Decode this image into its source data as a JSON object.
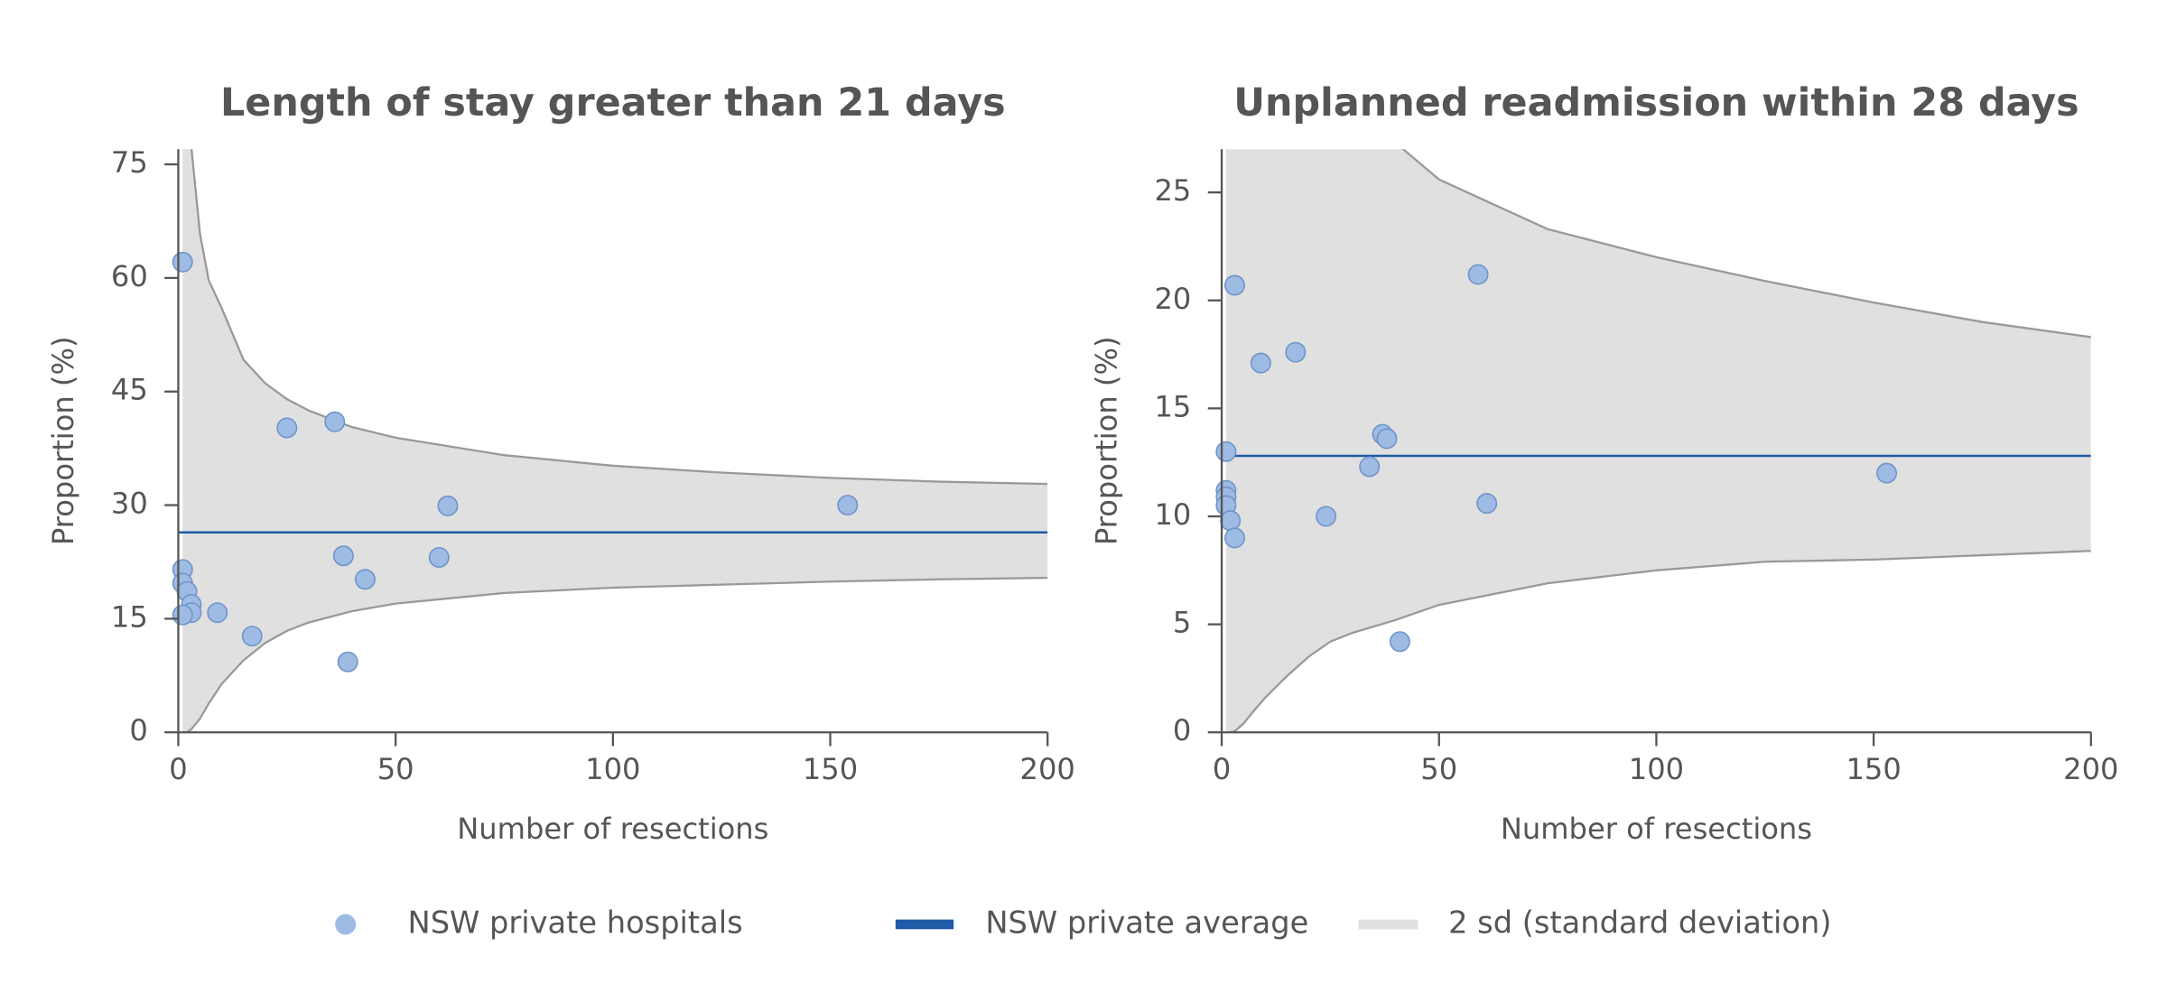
{
  "chart_data": [
    {
      "type": "scatter",
      "title": "Length of stay greater than 21 days",
      "x_label": "Number of resections",
      "y_label": "Proportion (%)",
      "xlim": [
        0,
        200
      ],
      "ylim": [
        0,
        77
      ],
      "xticks": [
        0,
        50,
        100,
        150,
        200
      ],
      "yticks": [
        0,
        15,
        30,
        45,
        60,
        75
      ],
      "series": [
        {
          "name": "NSW private hospitals",
          "color": "#9dbbe3",
          "x": [
            1,
            1,
            1,
            2,
            3,
            3,
            1,
            9,
            17,
            25,
            36,
            38,
            39,
            43,
            60,
            62,
            154
          ],
          "values": [
            62.1,
            21.5,
            19.7,
            18.6,
            16.9,
            15.8,
            15.5,
            15.8,
            12.7,
            40.2,
            41,
            23.3,
            9.3,
            20.2,
            23.1,
            29.9,
            30
          ]
        }
      ],
      "average": {
        "name": "NSW private average",
        "color": "#1f5aa6",
        "value": 26.4
      },
      "band": {
        "name": "2 sd (standard deviation)",
        "color": "#e0e0e0",
        "x": [
          1,
          2,
          3,
          5,
          7,
          10,
          15,
          20,
          25,
          30,
          40,
          50,
          75,
          100,
          125,
          150,
          175,
          200
        ],
        "upper": [
          114,
          88.8,
          77.3,
          65.8,
          59.7,
          56,
          49.2,
          46.1,
          44,
          42.5,
          40.3,
          38.9,
          36.6,
          35.2,
          34.3,
          33.6,
          33.1,
          32.8
        ],
        "lower": [
          0,
          0,
          0.4,
          1.8,
          3.8,
          6.4,
          9.5,
          11.8,
          13.4,
          14.5,
          16,
          17,
          18.4,
          19.1,
          19.5,
          19.9,
          20.2,
          20.4
        ]
      }
    },
    {
      "type": "scatter",
      "title": "Unplanned readmission within 28 days",
      "x_label": "Number of resections",
      "y_label": "Proportion (%)",
      "xlim": [
        0,
        200
      ],
      "ylim": [
        0,
        27
      ],
      "xticks": [
        0,
        50,
        100,
        150,
        200
      ],
      "yticks": [
        0,
        5,
        10,
        15,
        20,
        25
      ],
      "series": [
        {
          "color": "#9dbbe3",
          "x": [
            1,
            1,
            1,
            1,
            2,
            3,
            3,
            9,
            17,
            24,
            34,
            37,
            38,
            41,
            59,
            61,
            153
          ],
          "values": [
            13,
            11.2,
            10.9,
            10.5,
            9.8,
            20.7,
            9,
            17.1,
            17.6,
            10,
            12.3,
            13.8,
            13.6,
            4.2,
            21.2,
            10.6,
            12
          ]
        }
      ],
      "average": {
        "color": "#1f5aa6",
        "value": 12.8
      },
      "band": {
        "color": "#e0e0e0",
        "x": [
          1,
          2,
          3,
          5,
          7,
          10,
          15,
          20,
          25,
          30,
          40,
          50,
          75,
          100,
          125,
          150,
          175,
          200
        ],
        "upper": [
          80,
          60,
          52,
          44,
          39,
          35,
          32,
          30.5,
          29.3,
          28.4,
          27.3,
          25.6,
          23.3,
          22,
          20.9,
          19.9,
          19,
          18.3
        ],
        "lower": [
          0,
          0,
          0.05,
          0.4,
          0.9,
          1.6,
          2.6,
          3.5,
          4.2,
          4.6,
          5.2,
          5.9,
          6.9,
          7.5,
          7.9,
          8,
          8.2,
          8.4
        ]
      }
    }
  ]
}
